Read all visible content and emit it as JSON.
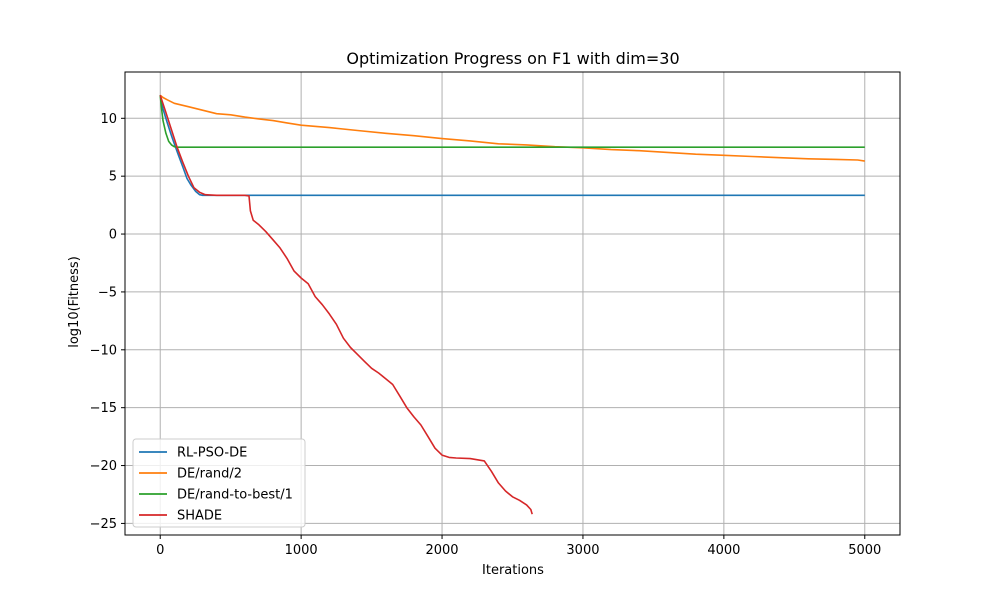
{
  "chart_data": {
    "type": "line",
    "title": "Optimization Progress on F1 with dim=30",
    "xlabel": "Iterations",
    "ylabel": "log10(Fitness)",
    "xlim": [
      -250,
      5250
    ],
    "ylim": [
      -26,
      14
    ],
    "xticks": [
      0,
      1000,
      2000,
      3000,
      4000,
      5000
    ],
    "xtick_labels": [
      "0",
      "1000",
      "2000",
      "3000",
      "4000",
      "5000"
    ],
    "yticks": [
      10,
      5,
      0,
      -5,
      -10,
      -15,
      -20,
      -25
    ],
    "ytick_labels": [
      "10",
      "5",
      "0",
      "−5",
      "−10",
      "−15",
      "−20",
      "−25"
    ],
    "grid": true,
    "legend_position": "lower-left",
    "series": [
      {
        "name": "RL-PSO-DE",
        "color": "#1f77b4",
        "x": [
          0,
          20,
          50,
          80,
          100,
          130,
          160,
          190,
          220,
          250,
          280,
          300,
          400,
          500,
          600,
          5000
        ],
        "y": [
          12.0,
          10.8,
          9.6,
          8.5,
          7.8,
          6.8,
          5.8,
          4.8,
          4.2,
          3.7,
          3.4,
          3.35,
          3.35,
          3.35,
          3.35,
          3.35
        ]
      },
      {
        "name": "DE/rand/2",
        "color": "#ff7f0e",
        "x": [
          0,
          20,
          50,
          100,
          200,
          300,
          400,
          500,
          600,
          700,
          800,
          900,
          1000,
          1200,
          1400,
          1600,
          1800,
          2000,
          2200,
          2400,
          2600,
          2800,
          3000,
          3200,
          3400,
          3600,
          3800,
          4000,
          4200,
          4400,
          4600,
          4800,
          4950,
          5000
        ],
        "y": [
          12.0,
          11.8,
          11.6,
          11.3,
          11.0,
          10.7,
          10.4,
          10.3,
          10.1,
          9.95,
          9.8,
          9.6,
          9.4,
          9.2,
          8.95,
          8.7,
          8.5,
          8.25,
          8.05,
          7.8,
          7.7,
          7.55,
          7.45,
          7.3,
          7.2,
          7.05,
          6.9,
          6.8,
          6.7,
          6.6,
          6.5,
          6.45,
          6.4,
          6.3
        ]
      },
      {
        "name": "DE/rand-to-best/1",
        "color": "#2ca02c",
        "x": [
          0,
          10,
          20,
          40,
          60,
          80,
          100,
          120,
          150,
          5000
        ],
        "y": [
          12.0,
          10.8,
          9.8,
          8.7,
          8.0,
          7.7,
          7.55,
          7.5,
          7.5,
          7.5
        ]
      },
      {
        "name": "SHADE",
        "color": "#d62728",
        "x": [
          0,
          40,
          80,
          120,
          160,
          200,
          240,
          280,
          320,
          400,
          500,
          600,
          630,
          640,
          660,
          700,
          750,
          800,
          850,
          900,
          950,
          1000,
          1050,
          1100,
          1150,
          1200,
          1250,
          1300,
          1350,
          1400,
          1450,
          1500,
          1550,
          1600,
          1650,
          1700,
          1750,
          1800,
          1850,
          1900,
          1950,
          2000,
          2050,
          2100,
          2200,
          2300,
          2350,
          2400,
          2450,
          2500,
          2550,
          2600,
          2630,
          2640
        ],
        "y": [
          12.0,
          10.5,
          9.0,
          7.5,
          6.2,
          5.0,
          4.0,
          3.6,
          3.4,
          3.35,
          3.35,
          3.35,
          3.3,
          2.0,
          1.2,
          0.8,
          0.2,
          -0.5,
          -1.2,
          -2.1,
          -3.2,
          -3.8,
          -4.3,
          -5.4,
          -6.1,
          -6.9,
          -7.8,
          -9.0,
          -9.8,
          -10.4,
          -11.0,
          -11.6,
          -12.0,
          -12.5,
          -13.0,
          -14.0,
          -15.0,
          -15.8,
          -16.5,
          -17.5,
          -18.5,
          -19.1,
          -19.3,
          -19.35,
          -19.4,
          -19.6,
          -20.5,
          -21.5,
          -22.2,
          -22.7,
          -23.0,
          -23.4,
          -23.8,
          -24.2
        ]
      }
    ]
  }
}
